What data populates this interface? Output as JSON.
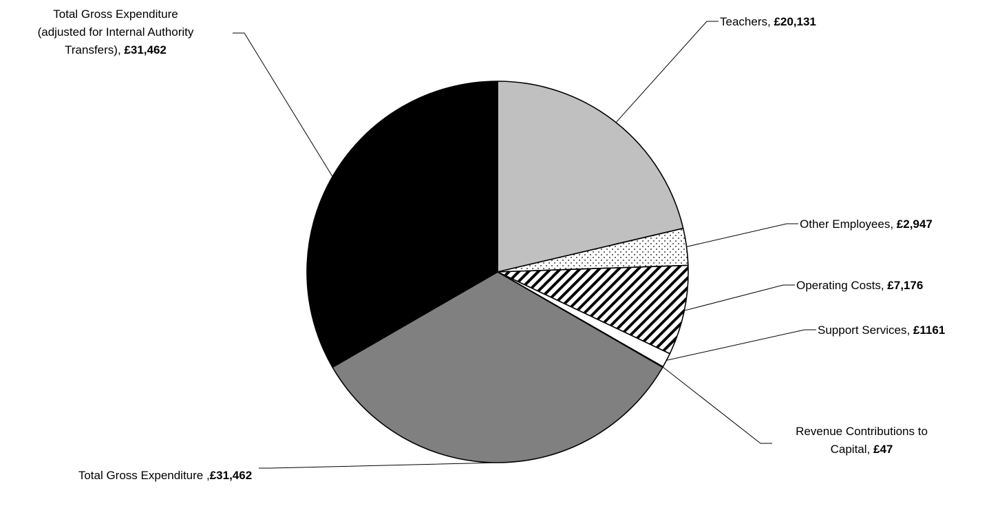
{
  "chart_data": {
    "type": "pie",
    "slices": [
      {
        "name": "Teachers",
        "value": 20131,
        "value_label": "£20,131",
        "fill": "#c0c0c0",
        "pattern": "solid"
      },
      {
        "name": "Other Employees",
        "value": 2947,
        "value_label": "£2,947",
        "fill": "#ffffff",
        "pattern": "dots"
      },
      {
        "name": "Operating Costs",
        "value": 7176,
        "value_label": "£7,176",
        "fill": "#ffffff",
        "pattern": "diagonal-stripes"
      },
      {
        "name": "Support Services",
        "value": 1161,
        "value_label": "£1161",
        "fill": "#ffffff",
        "pattern": "solid"
      },
      {
        "name": "Revenue Contributions to Capital",
        "value": 47,
        "value_label": "£47",
        "fill": "#ffffff",
        "pattern": "solid"
      },
      {
        "name": "Total Gross Expenditure",
        "value": 31462,
        "value_label": "£31,462",
        "fill": "#808080",
        "pattern": "solid"
      },
      {
        "name": "Total Gross Expenditure (adjusted for Internal Authority Transfers)",
        "value": 31462,
        "value_label": "£31,462",
        "fill": "#000000",
        "pattern": "solid"
      }
    ],
    "labels": [
      {
        "lines": [
          {
            "text": "Teachers, "
          }
        ],
        "value": "£20,131"
      },
      {
        "lines": [
          {
            "text": "Other Employees, "
          }
        ],
        "value": "£2,947"
      },
      {
        "lines": [
          {
            "text": "Operating Costs, "
          }
        ],
        "value": "£7,176"
      },
      {
        "lines": [
          {
            "text": "Support Services, "
          }
        ],
        "value": "£1161"
      },
      {
        "lines": [
          {
            "text": "Revenue Contributions to"
          },
          {
            "text": "Capital, "
          }
        ],
        "value": "£47"
      },
      {
        "lines": [
          {
            "text": "Total Gross Expenditure ,"
          },
          {
            "text": ""
          }
        ],
        "value": "£31,462"
      },
      {
        "lines": [
          {
            "text": "Total Gross Expenditure"
          },
          {
            "text": "(adjusted for Internal Authority"
          },
          {
            "text": "Transfers), "
          }
        ],
        "value": "£31,462"
      }
    ],
    "start_angle": "12 o'clock",
    "direction": "clockwise",
    "title": "",
    "legend": "none"
  }
}
